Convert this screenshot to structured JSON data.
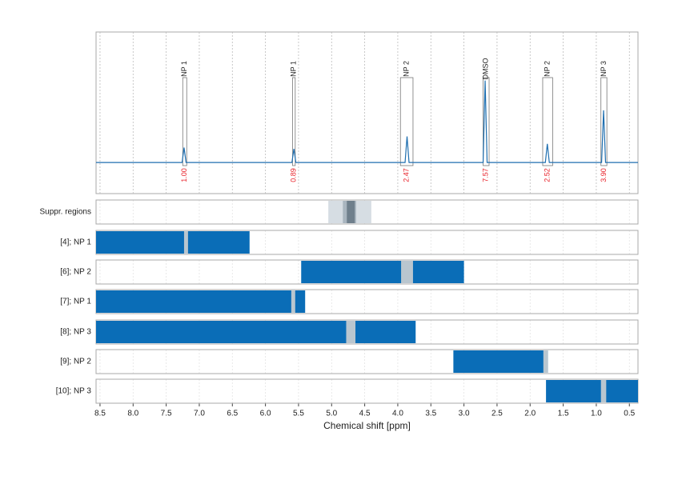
{
  "chart_data": {
    "type": "line",
    "x_label": "Chemical shift [ppm]",
    "xlim": [
      8.56,
      0.37
    ],
    "xticks": [
      8.5,
      {
        "value": 8,
        "label": "8.0"
      },
      7.5,
      {
        "value": 7,
        "label": "7.0"
      },
      6.5,
      {
        "value": 6,
        "label": "6.0"
      },
      5.5,
      {
        "value": 5,
        "label": "5.0"
      },
      4.5,
      {
        "value": 4,
        "label": "4.0"
      },
      3.5,
      {
        "value": 3,
        "label": "3.0"
      },
      2.5,
      {
        "value": 2,
        "label": "2.0"
      },
      1.5,
      {
        "value": 1,
        "label": "1.0"
      },
      0.5
    ],
    "ylim": [
      -0.25,
      1.05
    ],
    "grid": true,
    "color": "#1f6fb0",
    "x": [
      8.56,
      7.26,
      7.23,
      7.2,
      5.6,
      5.57,
      5.54,
      3.89,
      3.86,
      3.83,
      2.71,
      2.68,
      2.65,
      1.77,
      1.74,
      1.71,
      0.92,
      0.89,
      0.86,
      0.37
    ],
    "values": [
      0,
      0,
      0.12,
      0,
      0,
      0.11,
      0,
      0,
      0.21,
      0,
      0,
      0.66,
      0,
      0,
      0.15,
      0,
      0,
      0.42,
      0,
      0
    ],
    "peaks": {
      "labels": [
        "NP 1",
        "NP 1",
        "NP 2",
        "DMSO",
        "NP 2",
        "NP 3"
      ],
      "from": [
        7.25,
        5.59,
        3.96,
        2.71,
        1.81,
        0.93
      ],
      "to": [
        7.19,
        5.55,
        3.77,
        2.62,
        1.66,
        0.84
      ],
      "values": [
        1.0,
        0.89,
        2.47,
        7.57,
        2.52,
        3.9
      ],
      "value_labels": [
        "1.00",
        "0.89",
        "2.47",
        "7.57",
        "2.52",
        "3.90"
      ],
      "color": "#e8222a"
    },
    "suppressed": {
      "name": "Suppr. regions",
      "from": [
        5.05,
        4.83,
        4.77
      ],
      "to": [
        4.4,
        4.63,
        4.65
      ],
      "colors": [
        "#d6dde3",
        "#a9b5bf",
        "#6f7f8c"
      ]
    },
    "regions": {
      "names": [
        "[4]; NP 1",
        "[6]; NP 2",
        "[7]; NP 1",
        "[8]; NP 3",
        "[9]; NP 2",
        "[10]; NP 3"
      ],
      "from": [
        8.56,
        5.46,
        8.56,
        8.56,
        3.16,
        1.76
      ],
      "to": [
        6.24,
        3.0,
        5.4,
        3.73,
        1.73,
        0.37
      ],
      "gap_from": [
        7.23,
        3.95,
        5.61,
        4.78,
        1.8,
        0.93
      ],
      "gap_to": [
        7.17,
        3.77,
        5.55,
        4.64,
        1.73,
        0.85
      ],
      "color": "#0a6db7",
      "gap_color": "#b9c6cf"
    }
  }
}
